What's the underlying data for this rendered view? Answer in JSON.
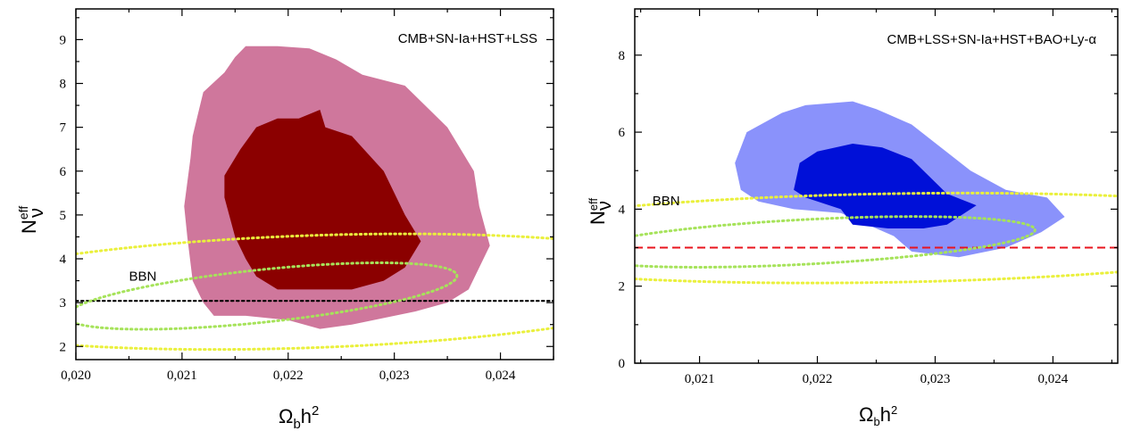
{
  "chart_data": [
    {
      "type": "contour",
      "title": "",
      "annotation": "CMB+SN-Ia+HST+LSS",
      "xlabel": {
        "main": "Ω",
        "sub": "b",
        "rest": "h",
        "sup": "2"
      },
      "ylabel": {
        "main": "N",
        "sub": "ν",
        "sup": "eff"
      },
      "xlim": [
        0.02,
        0.0245
      ],
      "ylim": [
        1.7,
        9.7
      ],
      "xticks": [
        0.02,
        0.021,
        0.022,
        0.023,
        0.024
      ],
      "xtick_labels": [
        "0,020",
        "0,021",
        "0,022",
        "0,023",
        "0,024"
      ],
      "yticks": [
        2,
        3,
        4,
        5,
        6,
        7,
        8,
        9
      ],
      "ytick_labels": [
        "2",
        "3",
        "4",
        "5",
        "6",
        "7",
        "8",
        "9"
      ],
      "regions": [
        {
          "name": "",
          "level": "outer",
          "color": "#cf779c",
          "points": [
            [
              0.02115,
              7.3
            ],
            [
              0.0212,
              7.8
            ],
            [
              0.0214,
              8.25
            ],
            [
              0.0215,
              8.6
            ],
            [
              0.0216,
              8.85
            ],
            [
              0.0219,
              8.85
            ],
            [
              0.0222,
              8.8
            ],
            [
              0.02245,
              8.55
            ],
            [
              0.0227,
              8.2
            ],
            [
              0.0231,
              7.95
            ],
            [
              0.0235,
              7.0
            ],
            [
              0.02375,
              6.0
            ],
            [
              0.0238,
              5.2
            ],
            [
              0.0239,
              4.3
            ],
            [
              0.0237,
              3.3
            ],
            [
              0.0235,
              3.0
            ],
            [
              0.0232,
              2.8
            ],
            [
              0.0226,
              2.5
            ],
            [
              0.0223,
              2.4
            ],
            [
              0.022,
              2.6
            ],
            [
              0.0216,
              2.7
            ],
            [
              0.0213,
              2.7
            ],
            [
              0.0212,
              3.0
            ],
            [
              0.0211,
              3.5
            ],
            [
              0.02105,
              4.5
            ],
            [
              0.02102,
              5.2
            ],
            [
              0.02108,
              6.3
            ],
            [
              0.0211,
              6.8
            ]
          ]
        },
        {
          "name": "",
          "level": "inner",
          "color": "#8b0000",
          "points": [
            [
              0.0214,
              5.4
            ],
            [
              0.0214,
              5.9
            ],
            [
              0.02155,
              6.5
            ],
            [
              0.0217,
              7.0
            ],
            [
              0.0219,
              7.2
            ],
            [
              0.0221,
              7.2
            ],
            [
              0.0223,
              7.4
            ],
            [
              0.02235,
              7.0
            ],
            [
              0.0226,
              6.8
            ],
            [
              0.0229,
              6.0
            ],
            [
              0.0231,
              5.0
            ],
            [
              0.02325,
              4.4
            ],
            [
              0.0231,
              3.8
            ],
            [
              0.0229,
              3.5
            ],
            [
              0.0226,
              3.3
            ],
            [
              0.0222,
              3.3
            ],
            [
              0.0219,
              3.3
            ],
            [
              0.0217,
              3.6
            ],
            [
              0.0216,
              4.0
            ],
            [
              0.0215,
              4.5
            ]
          ]
        }
      ],
      "bbn_contours": [
        {
          "name": "",
          "level": "inner",
          "color": "#a6e35a",
          "center": [
            0.02175,
            3.15
          ],
          "rx": 0.00185,
          "ry": 0.6,
          "angle_deg": 6
        },
        {
          "name": "",
          "level": "outer",
          "color": "#eaf03c",
          "center": [
            0.0222,
            3.25
          ],
          "rx": 0.0038,
          "ry": 1.28,
          "angle_deg": 2
        }
      ],
      "bbn_label": {
        "text": "BBN",
        "x": 0.0205,
        "y": 3.5
      },
      "hline": {
        "y": 3.04,
        "color": "#000000",
        "style": "dotted"
      }
    },
    {
      "type": "contour",
      "title": "",
      "annotation": "CMB+LSS+SN-Ia+HST+BAO+Ly-α",
      "xlabel": {
        "main": "Ω",
        "sub": "b",
        "rest": "h",
        "sup": "2"
      },
      "ylabel": {
        "main": "N",
        "sub": "ν",
        "sup": "eff"
      },
      "xlim": [
        0.02045,
        0.02455
      ],
      "ylim": [
        0,
        9.2
      ],
      "xticks": [
        0.021,
        0.022,
        0.023,
        0.024
      ],
      "xtick_labels": [
        "0,021",
        "0,022",
        "0,023",
        "0,024"
      ],
      "yticks": [
        0,
        2,
        4,
        6,
        8
      ],
      "ytick_labels": [
        "0",
        "2",
        "4",
        "6",
        "8"
      ],
      "regions": [
        {
          "name": "",
          "level": "outer",
          "color": "#8a92fb",
          "points": [
            [
              0.0213,
              5.2
            ],
            [
              0.0214,
              6.0
            ],
            [
              0.0217,
              6.5
            ],
            [
              0.0219,
              6.7
            ],
            [
              0.0223,
              6.8
            ],
            [
              0.0225,
              6.6
            ],
            [
              0.0228,
              6.2
            ],
            [
              0.0233,
              5.0
            ],
            [
              0.0236,
              4.5
            ],
            [
              0.02395,
              4.3
            ],
            [
              0.0241,
              3.8
            ],
            [
              0.0239,
              3.4
            ],
            [
              0.0236,
              3.0
            ],
            [
              0.0232,
              2.75
            ],
            [
              0.0228,
              2.9
            ],
            [
              0.02265,
              3.3
            ],
            [
              0.0222,
              3.9
            ],
            [
              0.0218,
              4.0
            ],
            [
              0.0215,
              4.2
            ],
            [
              0.02135,
              4.5
            ]
          ]
        },
        {
          "name": "",
          "level": "inner",
          "color": "#0010d8",
          "points": [
            [
              0.0218,
              4.5
            ],
            [
              0.02185,
              5.2
            ],
            [
              0.022,
              5.5
            ],
            [
              0.0223,
              5.7
            ],
            [
              0.02255,
              5.6
            ],
            [
              0.0228,
              5.3
            ],
            [
              0.0231,
              4.4
            ],
            [
              0.02335,
              4.1
            ],
            [
              0.0231,
              3.6
            ],
            [
              0.0229,
              3.5
            ],
            [
              0.0226,
              3.5
            ],
            [
              0.0223,
              3.6
            ],
            [
              0.0222,
              4.0
            ],
            [
              0.0219,
              4.3
            ]
          ]
        }
      ],
      "bbn_contours": [
        {
          "name": "",
          "level": "inner",
          "color": "#a6e35a",
          "center": [
            0.0219,
            3.15
          ],
          "rx": 0.00195,
          "ry": 0.58,
          "angle_deg": 3
        },
        {
          "name": "",
          "level": "outer",
          "color": "#eaf03c",
          "center": [
            0.0226,
            3.25
          ],
          "rx": 0.0038,
          "ry": 1.15,
          "angle_deg": 1
        }
      ],
      "bbn_label": {
        "text": "BBN",
        "x": 0.0206,
        "y": 4.1
      },
      "hline": {
        "y": 3.0,
        "color": "#e8141e",
        "style": "dashed"
      }
    }
  ]
}
